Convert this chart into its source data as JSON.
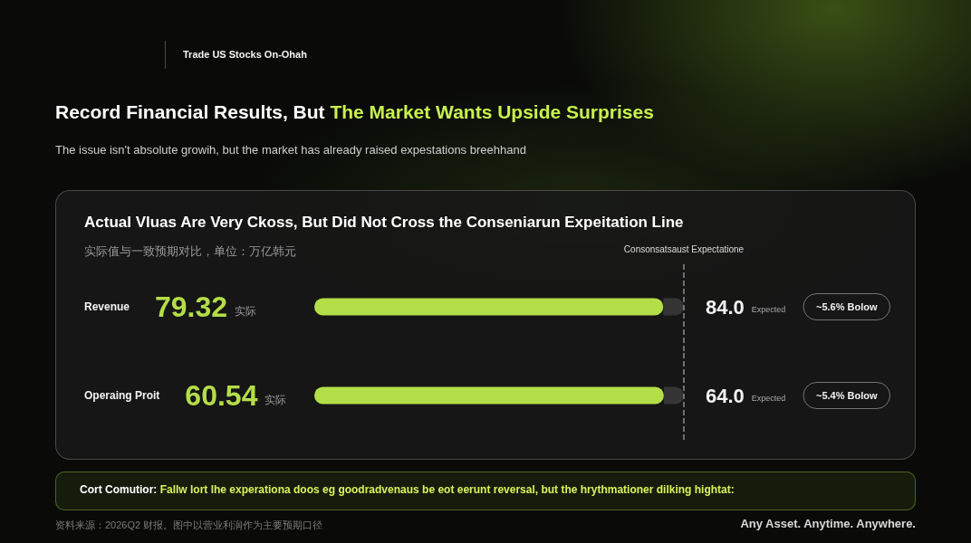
{
  "chart_data": [
    {
      "type": "bar",
      "orientation": "horizontal",
      "stacked": true,
      "title": "Record Financial Results, But The Market Wants Upside Surprises",
      "subtitle": "The issue isn't absolute growih, but the market has already raised expestations breehhand",
      "categories": [
        "Revenue"
      ],
      "series": [
        {
          "color": "#b4de48",
          "values": [
            79.32
          ],
          "value_labels": [
            "79.32"
          ]
        },
        {
          "color": "#353535",
          "values": [
            4.68
          ]
        }
      ],
      "totals": [
        "84.0"
      ],
      "xlim": [
        0,
        84.0
      ],
      "tick_labels": "y",
      "ref_lines": [
        {
          "axis": "x",
          "value": 84.0,
          "label": "Consonsatsaust Expectatione",
          "color": "#8c8c8c",
          "line_style": "dashed"
        }
      ],
      "annotations": [
        "实际",
        "Expected",
        "~5.6% Bolow",
        "Trade US Stocks On-Ohah",
        "Actual Vluas Are Very Ckoss, But Did Not Cross the Conseniarun Expeitation Line",
        "实际值与一致预期对比，单位：万亿韩元"
      ]
    },
    {
      "type": "bar",
      "orientation": "horizontal",
      "stacked": true,
      "categories": [
        "Operaing Proit"
      ],
      "series": [
        {
          "color": "#b4de48",
          "values": [
            60.54
          ],
          "value_labels": [
            "60.54"
          ]
        },
        {
          "color": "#353535",
          "values": [
            3.46
          ]
        }
      ],
      "totals": [
        "64.0"
      ],
      "xlim": [
        0,
        64.0
      ],
      "tick_labels": "y",
      "ref_lines": [
        {
          "axis": "x",
          "value": 64.0,
          "color": "#8c8c8c",
          "line_style": "dashed"
        }
      ],
      "annotations": [
        "实际",
        "Expected",
        "~5.4% Bolow",
        "Cort Comutior: Fallw lort lhe experationa doos eg goodradvenaus be eot eerunt reversal, but the hrythmationer dilking hightat:",
        "资料来源：2026Q2 财报。图中以营业利润作为主要预期口径",
        "Any Asset. Anytime. Anywhere."
      ]
    }
  ]
}
